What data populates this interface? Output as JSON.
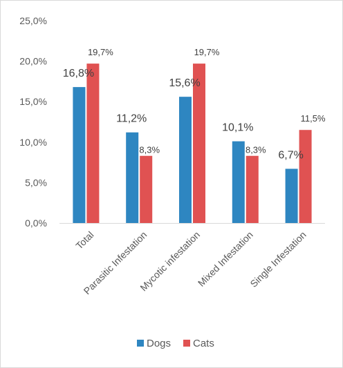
{
  "chart_data": {
    "type": "bar",
    "categories": [
      "Total",
      "Parasitic Infestation",
      "Mycotic infestation",
      "Mixed Infestation",
      "Single Infestation"
    ],
    "series": [
      {
        "name": "Dogs",
        "values": [
          16.8,
          11.2,
          15.6,
          10.1,
          6.7
        ],
        "labels": [
          "16,8%",
          "11,2%",
          "15,6%",
          "10,1%",
          "6,7%"
        ],
        "color": "#2e86c1"
      },
      {
        "name": "Cats",
        "values": [
          19.7,
          8.3,
          19.7,
          8.3,
          11.5
        ],
        "labels": [
          "19,7%",
          "8,3%",
          "19,7%",
          "8,3%",
          "11,5%"
        ],
        "color": "#e05252"
      }
    ],
    "yticks": [
      "0,0%",
      "5,0%",
      "10,0%",
      "15,0%",
      "20,0%",
      "25,0%"
    ],
    "ylim": [
      0,
      25
    ],
    "grid": false,
    "legend": "bottom"
  }
}
